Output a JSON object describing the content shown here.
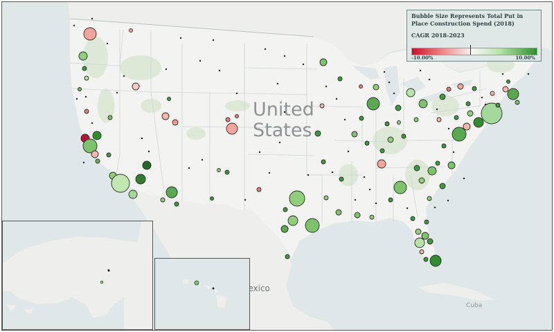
{
  "map": {
    "labels": {
      "country": "United States",
      "country_line1": "United",
      "country_line2": "States",
      "mexico": "Mexico",
      "cuba": "Cuba"
    },
    "insets": [
      "Alaska",
      "Hawaii"
    ],
    "colors": {
      "water": "#dfe7e8",
      "land": "#f1f1ef",
      "forest": "#dfeadb",
      "border": "#c7cfd1",
      "negative": "#c8102e",
      "positive": "#2f8f2f"
    }
  },
  "legend": {
    "size_title": "Bubble Size Represents Total Put in Place Construction Spend (2018)",
    "color_title": "CAGR 2018-2023",
    "min_label": "-10.00%",
    "max_label": "10.00%",
    "color_min": "#c8102e",
    "color_mid": "#f6f6f6",
    "color_max": "#2f8f2f"
  }
}
